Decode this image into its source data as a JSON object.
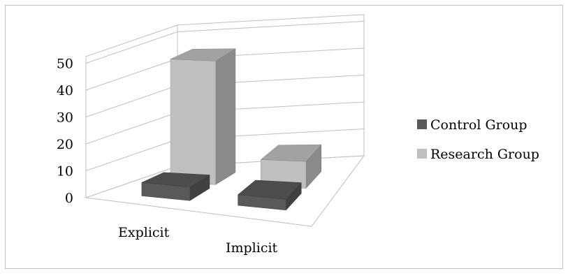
{
  "chart_data": {
    "type": "bar",
    "style": "3d-column",
    "categories": [
      "Explicit",
      "Implicit"
    ],
    "series": [
      {
        "name": "Control Group",
        "values": [
          5,
          4
        ],
        "color": "#595959"
      },
      {
        "name": "Research Group",
        "values": [
          46,
          10
        ],
        "color": "#bfbfbf"
      }
    ],
    "yticks": [
      0,
      10,
      20,
      30,
      40,
      50
    ],
    "ylim": [
      0,
      50
    ],
    "grid": true,
    "legend_position": "right"
  }
}
